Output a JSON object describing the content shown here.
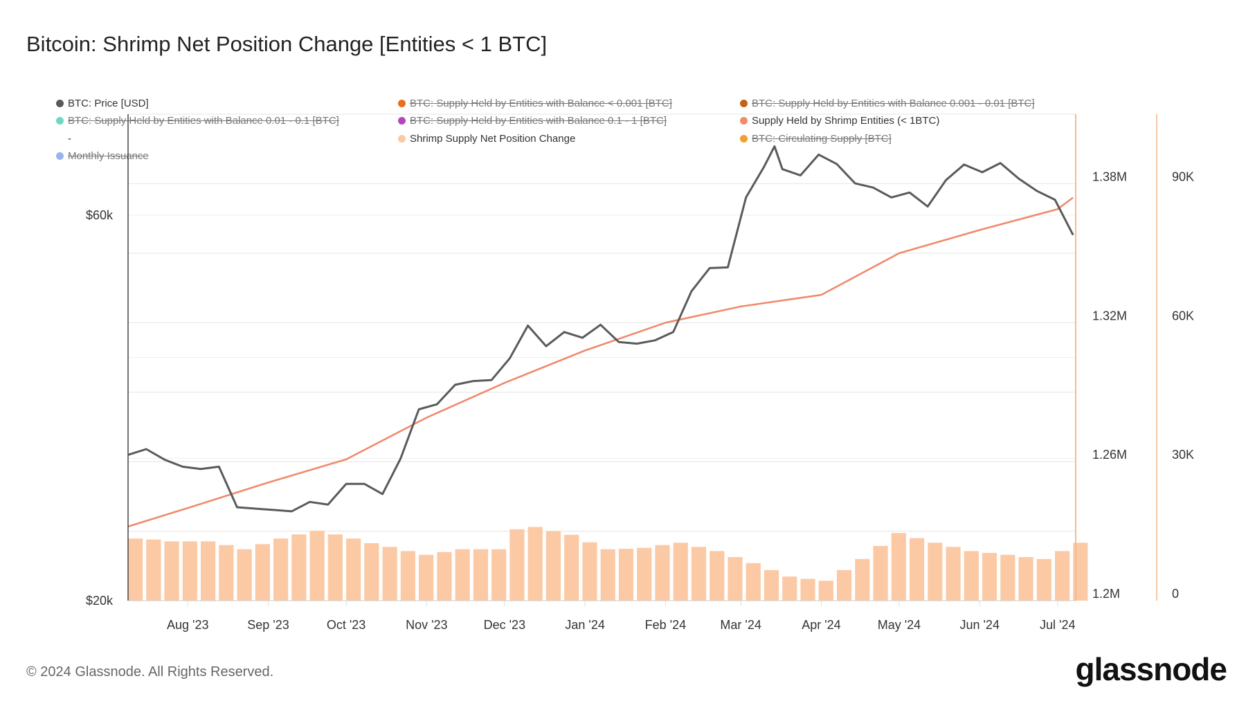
{
  "title": "Bitcoin: Shrimp Net Position Change [Entities < 1 BTC]",
  "legend": [
    {
      "label": "BTC: Price [USD]",
      "color": "#5a5a5a",
      "active": true
    },
    {
      "label": "BTC: Supply Held by Entities with Balance < 0.001 [BTC]",
      "color": "#e8701a",
      "active": false
    },
    {
      "label": "BTC: Supply Held by Entities with Balance 0.001 - 0.01 [BTC]",
      "color": "#c0621a",
      "active": false
    },
    {
      "label": "BTC: Supply Held by Entities with Balance 0.01 - 0.1 [BTC]",
      "color": "#6ed8c0",
      "active": false
    },
    {
      "label": "BTC: Supply Held by Entities with Balance 0.1 - 1 [BTC]",
      "color": "#b845c0",
      "active": false
    },
    {
      "label": "Supply Held by Shrimp Entities (< 1BTC)",
      "color": "#f08a6c",
      "active": true
    },
    {
      "label": "-",
      "color": "",
      "active": true
    },
    {
      "label": "Shrimp Supply Net Position Change",
      "color": "#fbc9a4",
      "active": true
    },
    {
      "label": "BTC: Circulating Supply [BTC]",
      "color": "#f0a030",
      "active": false
    },
    {
      "label": "Monthly Issuance",
      "color": "#9ab4f0",
      "active": false
    }
  ],
  "footer": "© 2024 Glassnode. All Rights Reserved.",
  "logo": "glassnode",
  "chart_data": {
    "type": "line+bar",
    "title": "Bitcoin: Shrimp Net Position Change [Entities < 1 BTC]",
    "x_range": [
      "2023-07-09",
      "2024-07-08"
    ],
    "x_ticks": [
      "Aug '23",
      "Sep '23",
      "Oct '23",
      "Nov '23",
      "Dec '23",
      "Jan '24",
      "Feb '24",
      "Mar '24",
      "Apr '24",
      "May '24",
      "Jun '24",
      "Jul '24"
    ],
    "x_tick_dates": [
      "2023-08-01",
      "2023-09-01",
      "2023-10-01",
      "2023-11-01",
      "2023-12-01",
      "2024-01-01",
      "2024-02-01",
      "2024-03-01",
      "2024-04-01",
      "2024-05-01",
      "2024-06-01",
      "2024-07-01"
    ],
    "grid": true,
    "axes": {
      "price": {
        "scale": "log",
        "range": [
          20000,
          80000
        ],
        "ticks": [
          "$20k",
          "$60k"
        ],
        "tick_values": [
          20000,
          60000
        ]
      },
      "supply": {
        "scale": "linear",
        "range": [
          1200000,
          1410000
        ],
        "ticks": [
          "1.2M",
          "1.26M",
          "1.32M",
          "1.38M"
        ],
        "tick_values": [
          1200000,
          1260000,
          1320000,
          1380000
        ]
      },
      "change": {
        "scale": "linear",
        "range": [
          0,
          105000
        ],
        "ticks": [
          "0",
          "30K",
          "60K",
          "90K"
        ],
        "tick_values": [
          0,
          30000,
          60000,
          90000
        ]
      }
    },
    "series": [
      {
        "name": "BTC: Price [USD]",
        "type": "line",
        "axis": "price",
        "color": "#5a5a5a",
        "dates": [
          "2023-07-09",
          "2023-07-16",
          "2023-07-23",
          "2023-07-30",
          "2023-08-06",
          "2023-08-13",
          "2023-08-20",
          "2023-08-27",
          "2023-09-03",
          "2023-09-10",
          "2023-09-17",
          "2023-09-24",
          "2023-10-01",
          "2023-10-08",
          "2023-10-15",
          "2023-10-22",
          "2023-10-29",
          "2023-11-05",
          "2023-11-12",
          "2023-11-19",
          "2023-11-26",
          "2023-12-03",
          "2023-12-10",
          "2023-12-17",
          "2023-12-24",
          "2023-12-31",
          "2024-01-07",
          "2024-01-14",
          "2024-01-21",
          "2024-01-28",
          "2024-02-04",
          "2024-02-11",
          "2024-02-18",
          "2024-02-25",
          "2024-03-03",
          "2024-03-10",
          "2024-03-14",
          "2024-03-17",
          "2024-03-24",
          "2024-03-31",
          "2024-04-07",
          "2024-04-14",
          "2024-04-21",
          "2024-04-28",
          "2024-05-05",
          "2024-05-12",
          "2024-05-19",
          "2024-05-26",
          "2024-06-02",
          "2024-06-09",
          "2024-06-16",
          "2024-06-23",
          "2024-06-30",
          "2024-07-07"
        ],
        "values": [
          30300,
          30800,
          29900,
          29300,
          29100,
          29300,
          26100,
          26000,
          25900,
          25800,
          26500,
          26300,
          27900,
          27900,
          27100,
          30000,
          34500,
          35000,
          37000,
          37400,
          37500,
          39900,
          43800,
          41300,
          43000,
          42300,
          43900,
          41800,
          41600,
          42000,
          43000,
          48300,
          51600,
          51700,
          63100,
          68900,
          73000,
          68400,
          67200,
          71300,
          69400,
          65700,
          64900,
          63100,
          64000,
          61500,
          66300,
          69300,
          67800,
          69600,
          66600,
          64300,
          62700,
          56700
        ]
      },
      {
        "name": "Supply Held by Shrimp Entities (< 1BTC)",
        "type": "line",
        "axis": "supply",
        "color": "#f08a6c",
        "dates": [
          "2023-07-09",
          "2023-08-01",
          "2023-09-01",
          "2023-10-01",
          "2023-11-01",
          "2023-12-01",
          "2024-01-01",
          "2024-02-01",
          "2024-03-01",
          "2024-04-01",
          "2024-05-01",
          "2024-06-01",
          "2024-07-01",
          "2024-07-07"
        ],
        "values": [
          1232000,
          1240000,
          1251000,
          1261000,
          1279000,
          1294000,
          1308000,
          1320000,
          1327000,
          1332000,
          1350000,
          1360000,
          1369000,
          1374000
        ]
      },
      {
        "name": "Shrimp Supply Net Position Change",
        "type": "bar",
        "axis": "change",
        "color": "#fbc9a4",
        "dates": [
          "2023-07-09",
          "2023-07-16",
          "2023-07-23",
          "2023-07-30",
          "2023-08-06",
          "2023-08-13",
          "2023-08-20",
          "2023-08-27",
          "2023-09-03",
          "2023-09-10",
          "2023-09-17",
          "2023-09-24",
          "2023-10-01",
          "2023-10-08",
          "2023-10-15",
          "2023-10-22",
          "2023-10-29",
          "2023-11-05",
          "2023-11-12",
          "2023-11-19",
          "2023-11-26",
          "2023-12-03",
          "2023-12-10",
          "2023-12-17",
          "2023-12-24",
          "2023-12-31",
          "2024-01-07",
          "2024-01-14",
          "2024-01-21",
          "2024-01-28",
          "2024-02-04",
          "2024-02-11",
          "2024-02-18",
          "2024-02-25",
          "2024-03-03",
          "2024-03-10",
          "2024-03-17",
          "2024-03-24",
          "2024-03-31",
          "2024-04-07",
          "2024-04-14",
          "2024-04-21",
          "2024-04-28",
          "2024-05-05",
          "2024-05-12",
          "2024-05-19",
          "2024-05-26",
          "2024-06-02",
          "2024-06-09",
          "2024-06-16",
          "2024-06-23",
          "2024-06-30",
          "2024-07-07"
        ],
        "values": [
          13400,
          13200,
          12800,
          12800,
          12800,
          12000,
          11100,
          12200,
          13400,
          14300,
          15100,
          14300,
          13400,
          12400,
          11600,
          10700,
          9900,
          10500,
          11100,
          11100,
          11100,
          15400,
          15900,
          15000,
          14200,
          12600,
          11100,
          11200,
          11400,
          12000,
          12500,
          11600,
          10700,
          9400,
          8100,
          6600,
          5200,
          4700,
          4300,
          6600,
          9000,
          11800,
          14600,
          13500,
          12500,
          11600,
          10700,
          10300,
          9900,
          9400,
          9000,
          10700,
          12500
        ]
      }
    ]
  }
}
